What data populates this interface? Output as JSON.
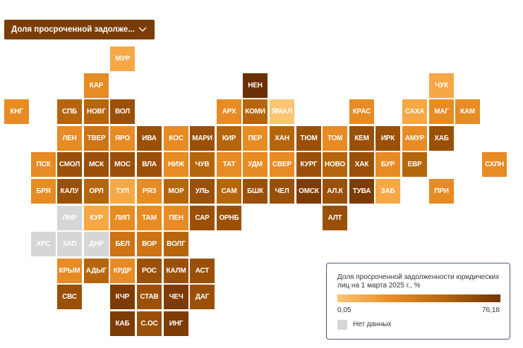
{
  "selector": {
    "label": "Доля просроченной задолже...",
    "icon": "chevron-down-icon"
  },
  "colors": {
    "l1": "#fcc572",
    "l2": "#f5a845",
    "l3": "#e78b24",
    "l4": "#cc7416",
    "l5": "#b5660d",
    "l6": "#9a5008",
    "l7": "#7d3c05",
    "l8": "#6a2f03",
    "nd": "#d6d6d6"
  },
  "regions": [
    {
      "label": "МУР",
      "col": 4,
      "row": 0,
      "c": "l2"
    },
    {
      "label": "КАР",
      "col": 3,
      "row": 1,
      "c": "l3"
    },
    {
      "label": "НЕН",
      "col": 9,
      "row": 1,
      "c": "l8"
    },
    {
      "label": "ЧУК",
      "col": 16,
      "row": 1,
      "c": "l2"
    },
    {
      "label": "КНГ",
      "col": 0,
      "row": 2,
      "c": "l3"
    },
    {
      "label": "СПБ",
      "col": 2,
      "row": 2,
      "c": "l5"
    },
    {
      "label": "НОВГ",
      "col": 3,
      "row": 2,
      "c": "l5"
    },
    {
      "label": "ВОЛ",
      "col": 4,
      "row": 2,
      "c": "l6"
    },
    {
      "label": "АРХ",
      "col": 8,
      "row": 2,
      "c": "l3"
    },
    {
      "label": "КОМИ",
      "col": 9,
      "row": 2,
      "c": "l5"
    },
    {
      "label": "ЯМАЛ",
      "col": 10,
      "row": 2,
      "c": "l1"
    },
    {
      "label": "КРАС",
      "col": 13,
      "row": 2,
      "c": "l3"
    },
    {
      "label": "САХА",
      "col": 15,
      "row": 2,
      "c": "l2"
    },
    {
      "label": "МАГ",
      "col": 16,
      "row": 2,
      "c": "l3"
    },
    {
      "label": "КАМ",
      "col": 17,
      "row": 2,
      "c": "l3"
    },
    {
      "label": "ЛЕН",
      "col": 2,
      "row": 3,
      "c": "l3"
    },
    {
      "label": "ТВЕР",
      "col": 3,
      "row": 3,
      "c": "l4"
    },
    {
      "label": "ЯРО",
      "col": 4,
      "row": 3,
      "c": "l3"
    },
    {
      "label": "ИВА",
      "col": 5,
      "row": 3,
      "c": "l6"
    },
    {
      "label": "КОС",
      "col": 6,
      "row": 3,
      "c": "l3"
    },
    {
      "label": "МАРИ",
      "col": 7,
      "row": 3,
      "c": "l6"
    },
    {
      "label": "КИР",
      "col": 8,
      "row": 3,
      "c": "l5"
    },
    {
      "label": "ПЕР",
      "col": 9,
      "row": 3,
      "c": "l3"
    },
    {
      "label": "ХАН",
      "col": 10,
      "row": 3,
      "c": "l5"
    },
    {
      "label": "ТЮМ",
      "col": 11,
      "row": 3,
      "c": "l6"
    },
    {
      "label": "ТОМ",
      "col": 12,
      "row": 3,
      "c": "l3"
    },
    {
      "label": "КЕМ",
      "col": 13,
      "row": 3,
      "c": "l6"
    },
    {
      "label": "ИРК",
      "col": 14,
      "row": 3,
      "c": "l6"
    },
    {
      "label": "АМУР",
      "col": 15,
      "row": 3,
      "c": "l3"
    },
    {
      "label": "ХАБ",
      "col": 16,
      "row": 3,
      "c": "l6"
    },
    {
      "label": "ПСК",
      "col": 1,
      "row": 4,
      "c": "l3"
    },
    {
      "label": "СМОЛ",
      "col": 2,
      "row": 4,
      "c": "l6"
    },
    {
      "label": "МСК",
      "col": 3,
      "row": 4,
      "c": "l6"
    },
    {
      "label": "МОС",
      "col": 4,
      "row": 4,
      "c": "l6"
    },
    {
      "label": "ВЛА",
      "col": 5,
      "row": 4,
      "c": "l6"
    },
    {
      "label": "НИЖ",
      "col": 6,
      "row": 4,
      "c": "l3"
    },
    {
      "label": "ЧУВ",
      "col": 7,
      "row": 4,
      "c": "l5"
    },
    {
      "label": "ТАТ",
      "col": 8,
      "row": 4,
      "c": "l3"
    },
    {
      "label": "УДМ",
      "col": 9,
      "row": 4,
      "c": "l3"
    },
    {
      "label": "СВЕР",
      "col": 10,
      "row": 4,
      "c": "l3"
    },
    {
      "label": "КУРГ",
      "col": 11,
      "row": 4,
      "c": "l6"
    },
    {
      "label": "НОВО",
      "col": 12,
      "row": 4,
      "c": "l5"
    },
    {
      "label": "ХАК",
      "col": 13,
      "row": 4,
      "c": "l6"
    },
    {
      "label": "БУР",
      "col": 14,
      "row": 4,
      "c": "l3"
    },
    {
      "label": "ЕВР",
      "col": 15,
      "row": 4,
      "c": "l5"
    },
    {
      "label": "СХЛН",
      "col": 18,
      "row": 4,
      "c": "l3"
    },
    {
      "label": "БРЯ",
      "col": 1,
      "row": 5,
      "c": "l3"
    },
    {
      "label": "КАЛУ",
      "col": 2,
      "row": 5,
      "c": "l6"
    },
    {
      "label": "ОРЛ",
      "col": 3,
      "row": 5,
      "c": "l5"
    },
    {
      "label": "ТУЛ",
      "col": 4,
      "row": 5,
      "c": "l2"
    },
    {
      "label": "РЯЗ",
      "col": 5,
      "row": 5,
      "c": "l3"
    },
    {
      "label": "МОР",
      "col": 6,
      "row": 5,
      "c": "l5"
    },
    {
      "label": "УЛЬ",
      "col": 7,
      "row": 5,
      "c": "l6"
    },
    {
      "label": "САМ",
      "col": 8,
      "row": 5,
      "c": "l5"
    },
    {
      "label": "БШК",
      "col": 9,
      "row": 5,
      "c": "l6"
    },
    {
      "label": "ЧЕЛ",
      "col": 10,
      "row": 5,
      "c": "l6"
    },
    {
      "label": "ОМСК",
      "col": 11,
      "row": 5,
      "c": "l7"
    },
    {
      "label": "АЛ.К",
      "col": 12,
      "row": 5,
      "c": "l6"
    },
    {
      "label": "ТУВА",
      "col": 13,
      "row": 5,
      "c": "l7"
    },
    {
      "label": "ЗАБ",
      "col": 14,
      "row": 5,
      "c": "l2"
    },
    {
      "label": "ПРИ",
      "col": 16,
      "row": 5,
      "c": "l3"
    },
    {
      "label": "ЛНР",
      "col": 2,
      "row": 6,
      "c": "nd"
    },
    {
      "label": "КУР",
      "col": 3,
      "row": 6,
      "c": "l2"
    },
    {
      "label": "ЛИП",
      "col": 4,
      "row": 6,
      "c": "l3"
    },
    {
      "label": "ТАМ",
      "col": 5,
      "row": 6,
      "c": "l3"
    },
    {
      "label": "ПЕН",
      "col": 6,
      "row": 6,
      "c": "l3"
    },
    {
      "label": "САР",
      "col": 7,
      "row": 6,
      "c": "l6"
    },
    {
      "label": "ОРНБ",
      "col": 8,
      "row": 6,
      "c": "l6"
    },
    {
      "label": "АЛТ",
      "col": 12,
      "row": 6,
      "c": "l6"
    },
    {
      "label": "ХРС",
      "col": 1,
      "row": 7,
      "c": "nd"
    },
    {
      "label": "ЗАП",
      "col": 2,
      "row": 7,
      "c": "nd"
    },
    {
      "label": "ДНР",
      "col": 3,
      "row": 7,
      "c": "nd"
    },
    {
      "label": "БЕЛ",
      "col": 4,
      "row": 7,
      "c": "l4"
    },
    {
      "label": "ВОР",
      "col": 5,
      "row": 7,
      "c": "l4"
    },
    {
      "label": "ВОЛГ",
      "col": 6,
      "row": 7,
      "c": "l5"
    },
    {
      "label": "КРЫМ",
      "col": 2,
      "row": 8,
      "c": "l3"
    },
    {
      "label": "АДЫГ",
      "col": 3,
      "row": 8,
      "c": "l5"
    },
    {
      "label": "КРДР",
      "col": 4,
      "row": 8,
      "c": "l3"
    },
    {
      "label": "РОС",
      "col": 5,
      "row": 8,
      "c": "l6"
    },
    {
      "label": "КАЛМ",
      "col": 6,
      "row": 8,
      "c": "l6"
    },
    {
      "label": "АСТ",
      "col": 7,
      "row": 8,
      "c": "l6"
    },
    {
      "label": "СВС",
      "col": 2,
      "row": 9,
      "c": "l6"
    },
    {
      "label": "КЧР",
      "col": 4,
      "row": 9,
      "c": "l7"
    },
    {
      "label": "СТАВ",
      "col": 5,
      "row": 9,
      "c": "l6"
    },
    {
      "label": "ЧЕЧ",
      "col": 6,
      "row": 9,
      "c": "l7"
    },
    {
      "label": "ДАГ",
      "col": 7,
      "row": 9,
      "c": "l6"
    },
    {
      "label": "КАБ",
      "col": 4,
      "row": 10,
      "c": "l7"
    },
    {
      "label": "С.ОС",
      "col": 5,
      "row": 10,
      "c": "l6"
    },
    {
      "label": "ИНГ",
      "col": 6,
      "row": 10,
      "c": "l7"
    }
  ],
  "legend": {
    "title": "Доля просроченной задолженности юридических лиц на 1 марта 2025  г., %",
    "min_label": "0,05",
    "max_label": "76,18",
    "min_value": 0.05,
    "max_value": 76.18,
    "no_data_label": "Нет данных"
  }
}
